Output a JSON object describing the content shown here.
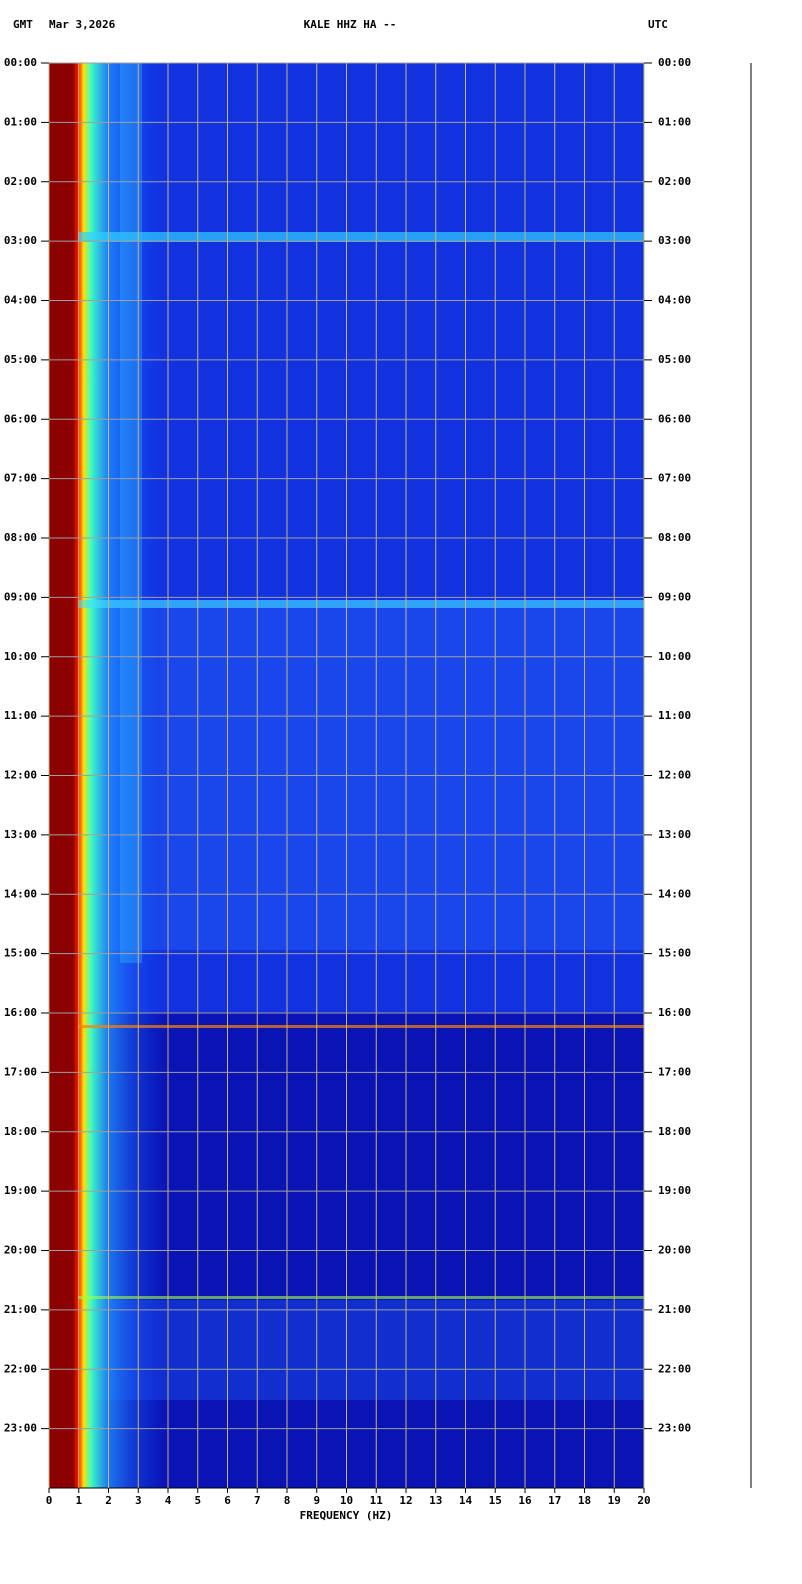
{
  "chart_data": {
    "type": "spectrogram",
    "timezone": "GMT",
    "date": "Mar 3,2026",
    "title": "KALE HHZ HA --",
    "timezone_right": "UTC",
    "xlabel": "FREQUENCY (HZ)",
    "xlim": [
      0,
      20
    ],
    "xticks": [
      0,
      1,
      2,
      3,
      4,
      5,
      6,
      7,
      8,
      9,
      10,
      11,
      12,
      13,
      14,
      15,
      16,
      17,
      18,
      19,
      20
    ],
    "ylim": [
      0,
      24
    ],
    "yticks": [
      {
        "value": 0,
        "label": "00:00"
      },
      {
        "value": 1,
        "label": "01:00"
      },
      {
        "value": 2,
        "label": "02:00"
      },
      {
        "value": 3,
        "label": "03:00"
      },
      {
        "value": 4,
        "label": "04:00"
      },
      {
        "value": 5,
        "label": "05:00"
      },
      {
        "value": 6,
        "label": "06:00"
      },
      {
        "value": 7,
        "label": "07:00"
      },
      {
        "value": 8,
        "label": "08:00"
      },
      {
        "value": 9,
        "label": "09:00"
      },
      {
        "value": 10,
        "label": "10:00"
      },
      {
        "value": 11,
        "label": "11:00"
      },
      {
        "value": 12,
        "label": "12:00"
      },
      {
        "value": 13,
        "label": "13:00"
      },
      {
        "value": 14,
        "label": "14:00"
      },
      {
        "value": 15,
        "label": "15:00"
      },
      {
        "value": 16,
        "label": "16:00"
      },
      {
        "value": 17,
        "label": "17:00"
      },
      {
        "value": 18,
        "label": "18:00"
      },
      {
        "value": 19,
        "label": "19:00"
      },
      {
        "value": 20,
        "label": "20:00"
      },
      {
        "value": 21,
        "label": "21:00"
      },
      {
        "value": 22,
        "label": "22:00"
      },
      {
        "value": 23,
        "label": "23:00"
      }
    ],
    "grid": true
  }
}
